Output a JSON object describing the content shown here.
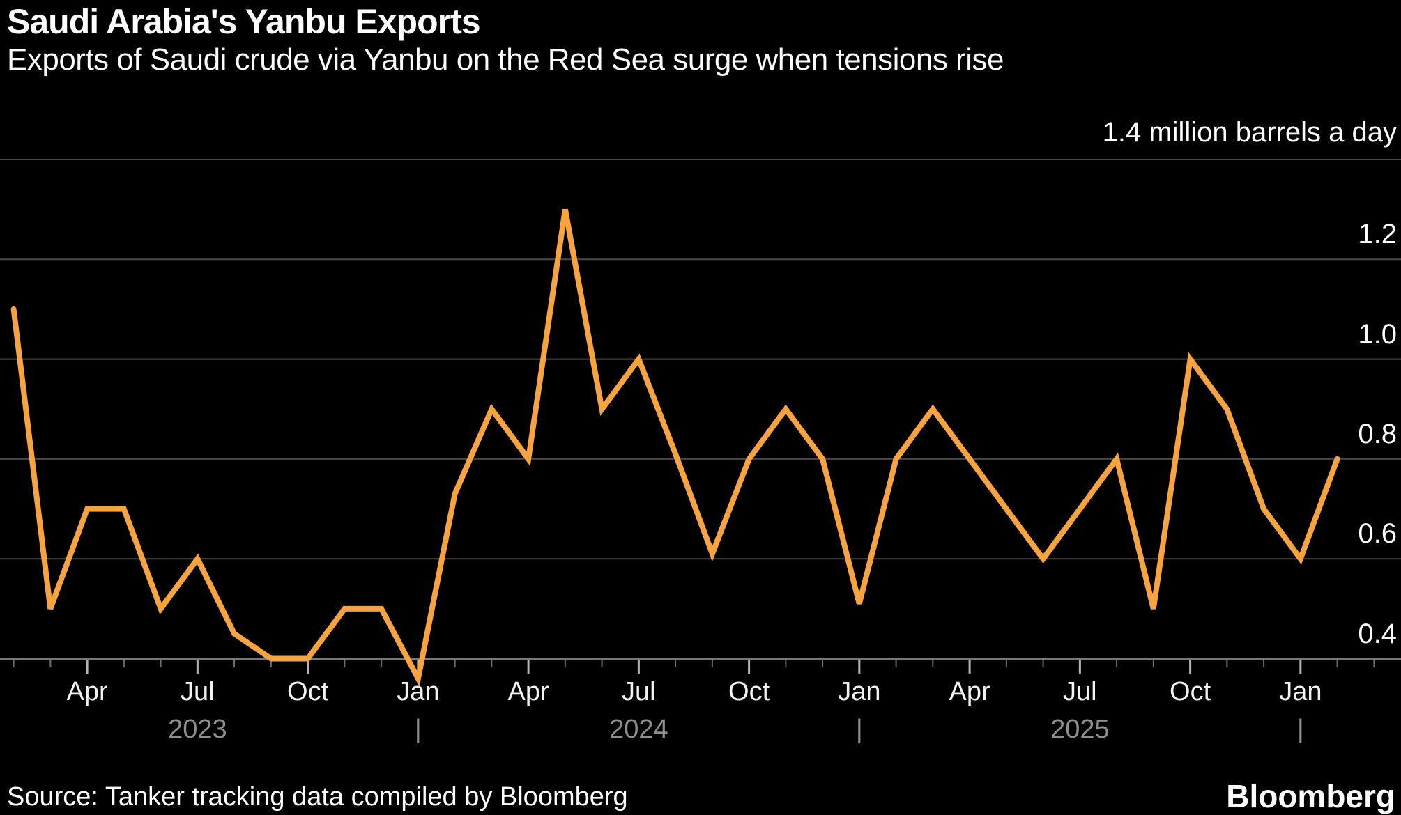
{
  "header": {
    "title": "Saudi Arabia's Yanbu Exports",
    "subtitle": "Exports of Saudi crude via Yanbu on the Red Sea surge when tensions rise"
  },
  "chart_data": {
    "type": "line",
    "title": "Saudi Arabia's Yanbu Exports",
    "subtitle": "Exports of Saudi crude via Yanbu on the Red Sea surge when tensions rise",
    "unit_label": "1.4 million barrels a day",
    "ylabel": "million barrels a day",
    "ylim": [
      0.4,
      1.4
    ],
    "yticks": [
      1.4,
      1.2,
      1.0,
      0.8,
      0.6,
      0.4
    ],
    "grid": true,
    "legend": "none",
    "line_color": "#F8A33C",
    "background_color": "#000000",
    "months": [
      "Feb 2023",
      "Mar 2023",
      "Apr 2023",
      "May 2023",
      "Jun 2023",
      "Jul 2023",
      "Aug 2023",
      "Sep 2023",
      "Oct 2023",
      "Nov 2023",
      "Dec 2023",
      "Jan 2024",
      "Feb 2024",
      "Mar 2024",
      "Apr 2024",
      "May 2024",
      "Jun 2024",
      "Jul 2024",
      "Aug 2024",
      "Sep 2024",
      "Oct 2024",
      "Nov 2024",
      "Dec 2024",
      "Jan 2025",
      "Feb 2025",
      "Mar 2025",
      "Apr 2025",
      "May 2025",
      "Jun 2025",
      "Jul 2025",
      "Aug 2025",
      "Sep 2025",
      "Oct 2025",
      "Nov 2025",
      "Dec 2025",
      "Jan 2026",
      "Feb 2026"
    ],
    "values": [
      1.1,
      0.5,
      0.7,
      0.7,
      0.5,
      0.6,
      0.45,
      0.4,
      0.4,
      0.5,
      0.5,
      0.36,
      0.73,
      0.9,
      0.8,
      1.3,
      0.9,
      1.0,
      0.81,
      0.61,
      0.8,
      0.9,
      0.8,
      0.51,
      0.8,
      0.9,
      0.8,
      0.7,
      0.6,
      0.7,
      0.8,
      0.5,
      1.0,
      0.9,
      0.7,
      0.6,
      0.8
    ],
    "x_axis": {
      "month_tick_labels": [
        "Apr",
        "Jul",
        "Oct",
        "Jan",
        "Apr",
        "Jul",
        "Oct",
        "Jan",
        "Apr",
        "Jul",
        "Oct",
        "Jan"
      ],
      "year_labels": [
        "2023",
        "2024",
        "2025"
      ],
      "year_separator_glyph": "|"
    }
  },
  "footer": {
    "source": "Source: Tanker tracking data compiled by Bloomberg",
    "brand": "Bloomberg"
  }
}
